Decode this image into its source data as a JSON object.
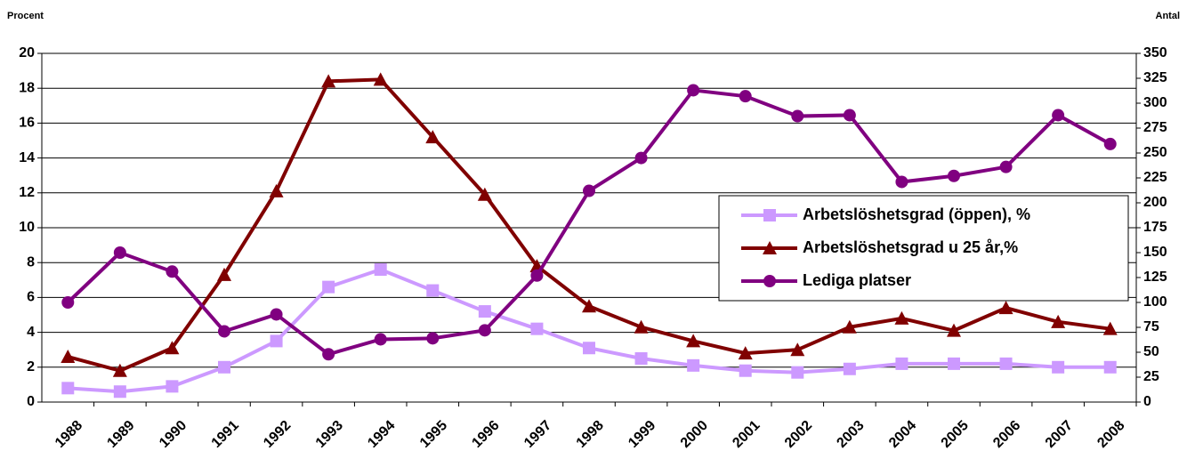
{
  "chart_data": {
    "type": "line",
    "y_label": "Procent",
    "y2_label": "Antal",
    "categories": [
      "1988",
      "1989",
      "1990",
      "1991",
      "1992",
      "1993",
      "1994",
      "1995",
      "1996",
      "1997",
      "1998",
      "1999",
      "2000",
      "2001",
      "2002",
      "2003",
      "2004",
      "2005",
      "2006",
      "2007",
      "2008"
    ],
    "series": [
      {
        "name": "Arbetslöshetsgrad (öppen), %",
        "color": "#cc99ff",
        "marker": "square",
        "values": [
          0.8,
          0.6,
          0.9,
          2.0,
          3.5,
          6.6,
          7.6,
          6.4,
          5.2,
          4.2,
          3.1,
          2.5,
          2.1,
          1.8,
          1.7,
          1.9,
          2.2,
          2.2,
          2.2,
          2.0,
          2.0
        ]
      },
      {
        "name": "Arbetslöshetsgrad u 25 år,%",
        "color": "#800000",
        "marker": "triangle",
        "values": [
          2.6,
          1.8,
          3.1,
          7.3,
          12.1,
          18.4,
          18.5,
          15.2,
          11.9,
          7.8,
          5.5,
          4.3,
          3.5,
          2.8,
          3.0,
          4.3,
          4.8,
          4.1,
          5.4,
          4.6,
          4.2
        ]
      },
      {
        "name": "Lediga platser",
        "color": "#800080",
        "marker": "circle",
        "axis": "y2",
        "values": [
          100,
          150,
          131,
          71,
          88,
          48,
          63,
          64,
          72,
          127,
          212,
          245,
          313,
          307,
          287,
          288,
          221,
          227,
          236,
          288,
          259
        ]
      }
    ],
    "ylim": [
      0,
      20
    ],
    "yticks": [
      0,
      2,
      4,
      6,
      8,
      10,
      12,
      14,
      16,
      18,
      20
    ],
    "y2lim": [
      0,
      350
    ],
    "y2ticks": [
      0,
      25,
      50,
      75,
      100,
      125,
      150,
      175,
      200,
      225,
      250,
      275,
      300,
      325,
      350
    ],
    "grid": true,
    "legend": "right"
  }
}
